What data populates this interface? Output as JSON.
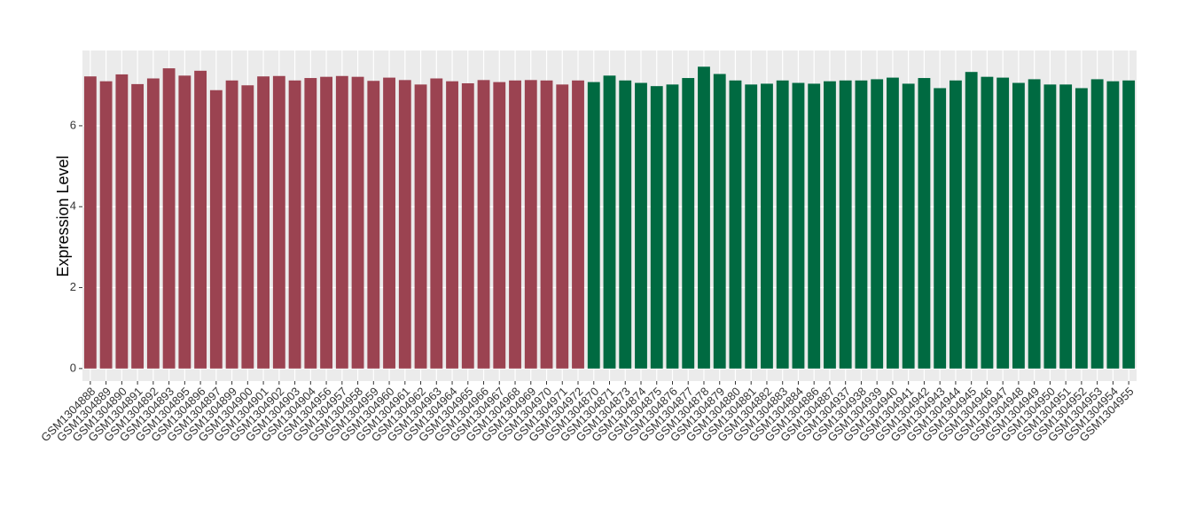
{
  "chart_data": {
    "type": "bar",
    "y_label": "Expression Level",
    "categories": [
      "GSM1304888",
      "GSM1304889",
      "GSM1304890",
      "GSM1304891",
      "GSM1304892",
      "GSM1304893",
      "GSM1304895",
      "GSM1304896",
      "GSM1304897",
      "GSM1304899",
      "GSM1304900",
      "GSM1304901",
      "GSM1304902",
      "GSM1304903",
      "GSM1304904",
      "GSM1304956",
      "GSM1304957",
      "GSM1304958",
      "GSM1304959",
      "GSM1304960",
      "GSM1304961",
      "GSM1304962",
      "GSM1304963",
      "GSM1304964",
      "GSM1304965",
      "GSM1304966",
      "GSM1304967",
      "GSM1304968",
      "GSM1304969",
      "GSM1304970",
      "GSM1304971",
      "GSM1304972",
      "GSM1304870",
      "GSM1304871",
      "GSM1304873",
      "GSM1304874",
      "GSM1304875",
      "GSM1304876",
      "GSM1304877",
      "GSM1304878",
      "GSM1304879",
      "GSM1304880",
      "GSM1304881",
      "GSM1304882",
      "GSM1304883",
      "GSM1304884",
      "GSM1304886",
      "GSM1304887",
      "GSM1304937",
      "GSM1304938",
      "GSM1304939",
      "GSM1304940",
      "GSM1304941",
      "GSM1304942",
      "GSM1304943",
      "GSM1304944",
      "GSM1304945",
      "GSM1304946",
      "GSM1304947",
      "GSM1304948",
      "GSM1304949",
      "GSM1304950",
      "GSM1304951",
      "GSM1304952",
      "GSM1304953",
      "GSM1304954",
      "GSM1304955"
    ],
    "values": [
      7.22,
      7.1,
      7.27,
      7.03,
      7.17,
      7.42,
      7.24,
      7.36,
      6.88,
      7.12,
      7.0,
      7.22,
      7.23,
      7.12,
      7.18,
      7.21,
      7.23,
      7.21,
      7.11,
      7.19,
      7.13,
      7.02,
      7.17,
      7.1,
      7.05,
      7.13,
      7.08,
      7.12,
      7.13,
      7.12,
      7.02,
      7.12,
      7.08,
      7.24,
      7.12,
      7.06,
      6.98,
      7.02,
      7.18,
      7.46,
      7.28,
      7.12,
      7.02,
      7.04,
      7.12,
      7.06,
      7.04,
      7.1,
      7.12,
      7.12,
      7.15,
      7.19,
      7.04,
      7.18,
      6.93,
      7.12,
      7.33,
      7.21,
      7.19,
      7.06,
      7.15,
      7.02,
      7.02,
      6.93,
      7.15,
      7.1,
      7.12
    ],
    "colors": [
      "#9b4351",
      "#9b4351",
      "#9b4351",
      "#9b4351",
      "#9b4351",
      "#9b4351",
      "#9b4351",
      "#9b4351",
      "#9b4351",
      "#9b4351",
      "#9b4351",
      "#9b4351",
      "#9b4351",
      "#9b4351",
      "#9b4351",
      "#9b4351",
      "#9b4351",
      "#9b4351",
      "#9b4351",
      "#9b4351",
      "#9b4351",
      "#9b4351",
      "#9b4351",
      "#9b4351",
      "#9b4351",
      "#9b4351",
      "#9b4351",
      "#9b4351",
      "#9b4351",
      "#9b4351",
      "#9b4351",
      "#9b4351",
      "#006a41",
      "#006a41",
      "#006a41",
      "#006a41",
      "#006a41",
      "#006a41",
      "#006a41",
      "#006a41",
      "#006a41",
      "#006a41",
      "#006a41",
      "#006a41",
      "#006a41",
      "#006a41",
      "#006a41",
      "#006a41",
      "#006a41",
      "#006a41",
      "#006a41",
      "#006a41",
      "#006a41",
      "#006a41",
      "#006a41",
      "#006a41",
      "#006a41",
      "#006a41",
      "#006a41",
      "#006a41",
      "#006a41",
      "#006a41",
      "#006a41",
      "#006a41",
      "#006a41",
      "#006a41",
      "#006a41"
    ],
    "ylim": [
      -0.31,
      7.86
    ],
    "yticks": [
      0,
      2,
      4,
      6
    ],
    "grid": true
  }
}
